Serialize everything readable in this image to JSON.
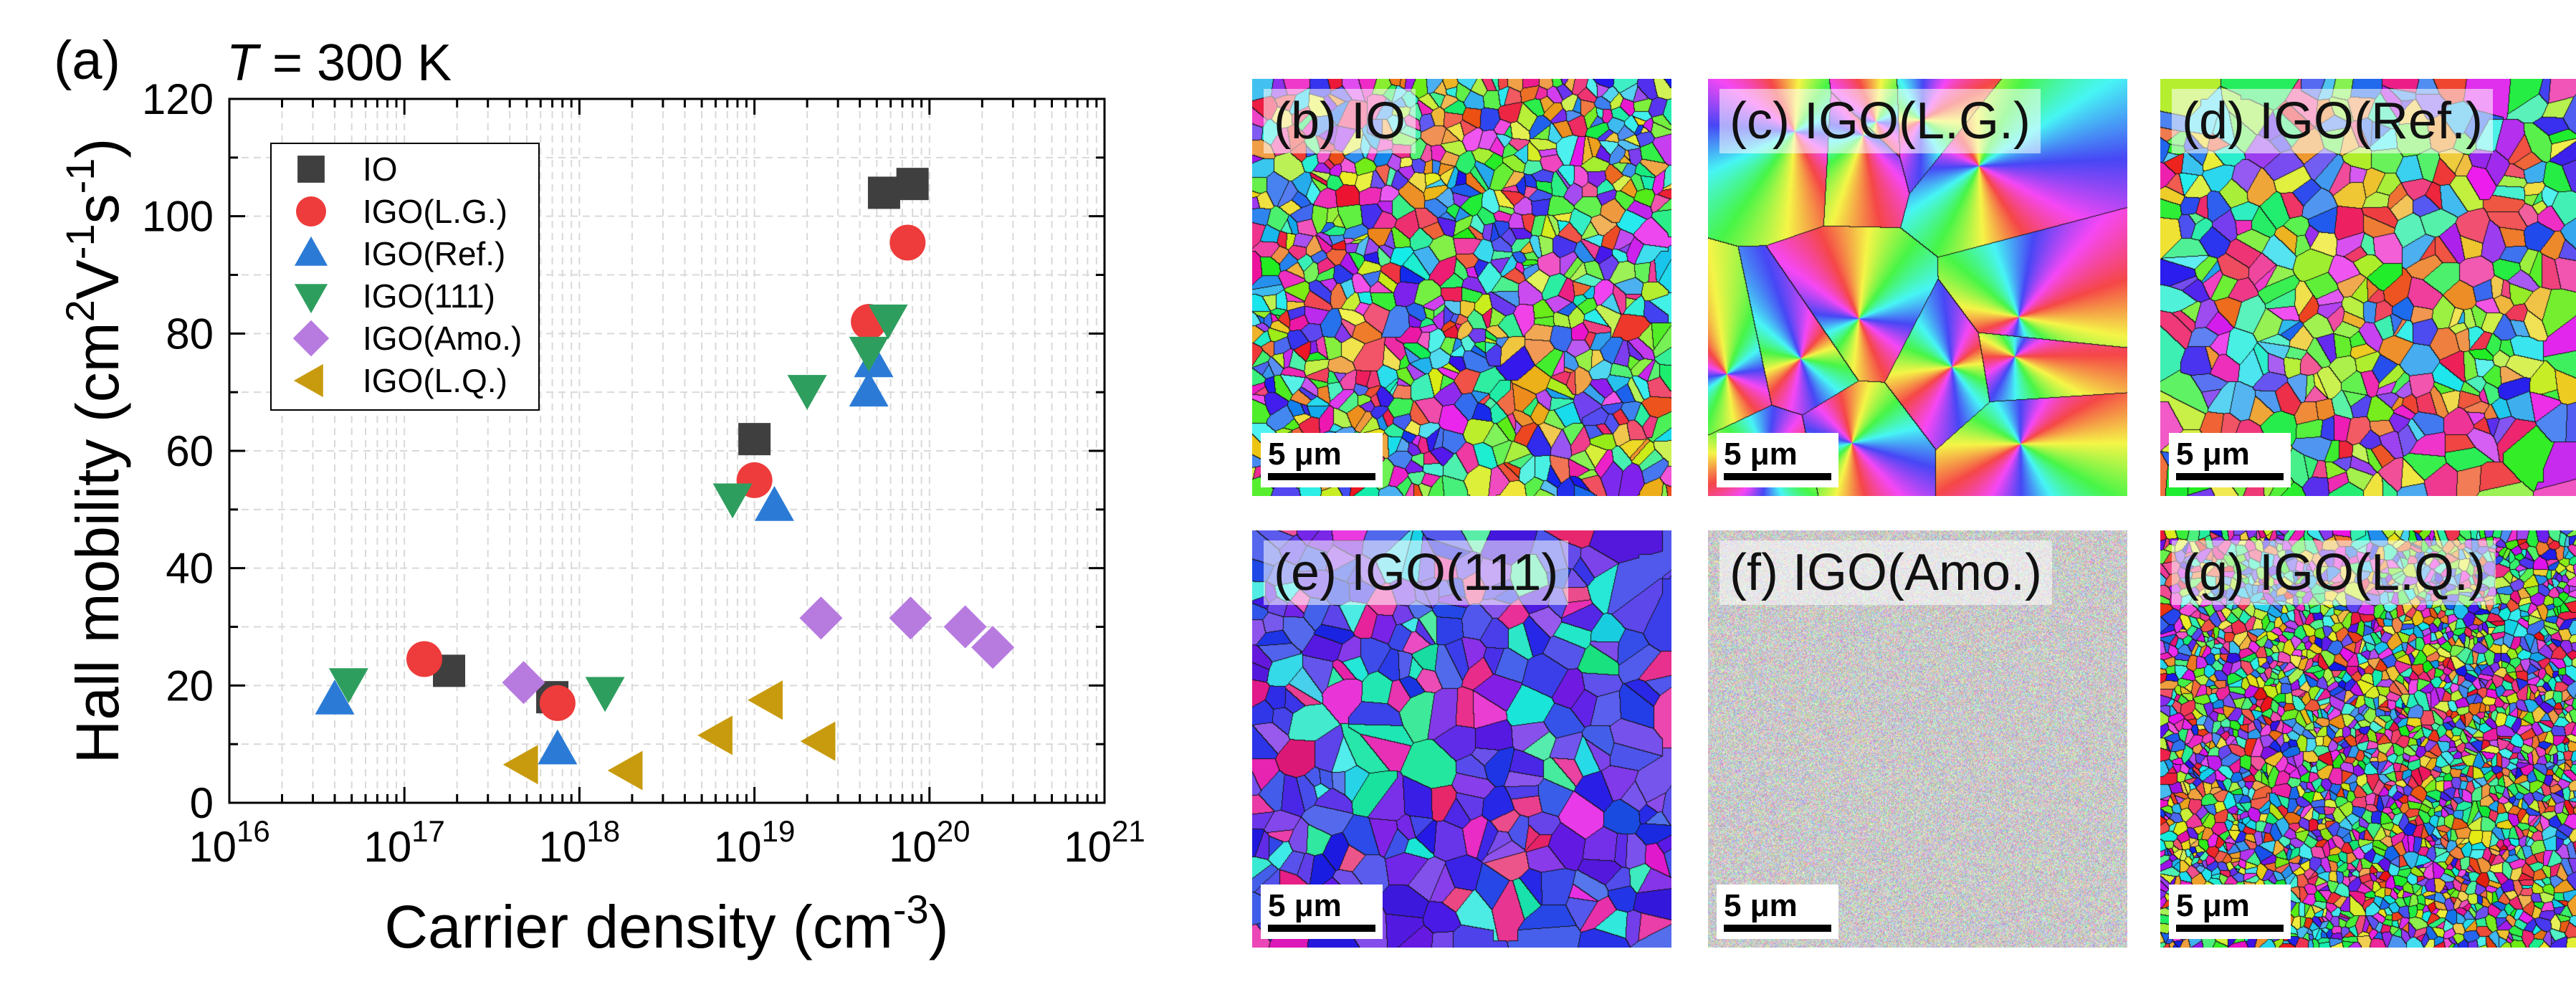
{
  "panel_a": {
    "label": "(a)",
    "temperature_var": "T",
    "temperature_rest": " = 300 K"
  },
  "chart_data": {
    "type": "scatter",
    "xlabel": "Carrier density (cm",
    "xlabel_sup": "-3",
    "xlabel_end": ")",
    "ylabel": "Hall mobility (cm",
    "ylabel_sup1": "2",
    "ylabel_mid1": "V",
    "ylabel_sup2": "-1",
    "ylabel_mid2": "s",
    "ylabel_sup3": "-1",
    "ylabel_end": ")",
    "x_scale": "log",
    "xlim": [
      1e+16,
      1e+21
    ],
    "ylim": [
      0,
      120
    ],
    "x_ticks": [
      {
        "base": "10",
        "exp": "16",
        "value": 1e+16
      },
      {
        "base": "10",
        "exp": "17",
        "value": 1e+17
      },
      {
        "base": "10",
        "exp": "18",
        "value": 1e+18
      },
      {
        "base": "10",
        "exp": "19",
        "value": 1e+19
      },
      {
        "base": "10",
        "exp": "20",
        "value": 1e+20
      },
      {
        "base": "10",
        "exp": "21",
        "value": 1e+21
      }
    ],
    "y_ticks": [
      "0",
      "20",
      "40",
      "60",
      "80",
      "100",
      "120"
    ],
    "grid": true,
    "legend_position": "top-left",
    "series": [
      {
        "name": "IO",
        "marker": "square",
        "color": "#3f3f3f",
        "points": [
          [
            1.8e+17,
            22.5
          ],
          [
            7e+17,
            18
          ],
          [
            1e+19,
            62
          ],
          [
            5.5e+19,
            104
          ],
          [
            8e+19,
            105.5
          ]
        ]
      },
      {
        "name": "IGO(L.G.)",
        "marker": "circle",
        "color": "#ee3b3b",
        "points": [
          [
            1.3e+17,
            24.5
          ],
          [
            7.5e+17,
            17
          ],
          [
            1e+19,
            55
          ],
          [
            4.5e+19,
            82
          ],
          [
            7.5e+19,
            95.5
          ]
        ]
      },
      {
        "name": "IGO(Ref.)",
        "marker": "triangle-up",
        "color": "#2b7bd6",
        "points": [
          [
            4e+16,
            17.5
          ],
          [
            7.5e+17,
            9
          ],
          [
            1.3e+19,
            50.5
          ],
          [
            4.5e+19,
            70
          ],
          [
            4.8e+19,
            75
          ]
        ]
      },
      {
        "name": "IGO(111)",
        "marker": "triangle-down",
        "color": "#2e9e5e",
        "points": [
          [
            4.8e+16,
            20.5
          ],
          [
            1.4e+18,
            19
          ],
          [
            7.5e+18,
            52
          ],
          [
            2e+19,
            70.5
          ],
          [
            4.5e+19,
            77
          ],
          [
            5.8e+19,
            82.5
          ]
        ]
      },
      {
        "name": "IGO(Amo.)",
        "marker": "diamond",
        "color": "#b77be0",
        "points": [
          [
            4.8e+17,
            20.5
          ],
          [
            2.4e+19,
            31.5
          ],
          [
            7.8e+19,
            31.5
          ],
          [
            1.6e+20,
            30
          ],
          [
            2.3e+20,
            26.5
          ]
        ]
      },
      {
        "name": "IGO(L.Q.)",
        "marker": "triangle-left",
        "color": "#c89b0e",
        "points": [
          [
            4.8e+17,
            6.5
          ],
          [
            1.9e+18,
            5.5
          ],
          [
            6.2e+18,
            11.5
          ],
          [
            1.2e+19,
            17.5
          ],
          [
            2.4e+19,
            10.5
          ]
        ]
      }
    ]
  },
  "ebsd_panels": [
    {
      "label": "(b) IO",
      "scale_bar": "5 μm",
      "style": "small-mixed"
    },
    {
      "label": "(c) IGO(L.G.)",
      "scale_bar": "5 μm",
      "style": "large-radial"
    },
    {
      "label": "(d) IGO(Ref.)",
      "scale_bar": "5 μm",
      "style": "medium-mixed"
    },
    {
      "label": "(e) IGO(111)",
      "scale_bar": "5 μm",
      "style": "medium-blue"
    },
    {
      "label": "(f) IGO(Amo.)",
      "scale_bar": "5 μm",
      "style": "noise"
    },
    {
      "label": "(g) IGO(L.Q.)",
      "scale_bar": "5 μm",
      "style": "fine-mixed"
    }
  ]
}
